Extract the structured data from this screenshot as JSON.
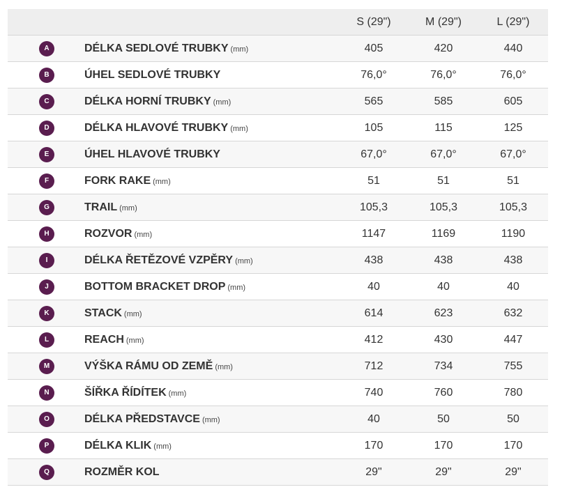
{
  "colors": {
    "badge": "#5a1d4f",
    "header_bg": "#eeeeee",
    "row_alt_bg": "#f7f7f7",
    "divider": "#d6d6d6",
    "text": "#333333"
  },
  "table": {
    "sizes": [
      "S (29\")",
      "M (29\")",
      "L (29\")"
    ],
    "rows": [
      {
        "letter": "A",
        "label": "DÉLKA SEDLOVÉ TRUBKY",
        "unit": "(mm)",
        "values": [
          "405",
          "420",
          "440"
        ]
      },
      {
        "letter": "B",
        "label": "ÚHEL SEDLOVÉ TRUBKY",
        "unit": "",
        "values": [
          "76,0°",
          "76,0°",
          "76,0°"
        ]
      },
      {
        "letter": "C",
        "label": "DÉLKA HORNÍ TRUBKY",
        "unit": "(mm)",
        "values": [
          "565",
          "585",
          "605"
        ]
      },
      {
        "letter": "D",
        "label": "DÉLKA HLAVOVÉ TRUBKY",
        "unit": "(mm)",
        "values": [
          "105",
          "115",
          "125"
        ]
      },
      {
        "letter": "E",
        "label": "ÚHEL HLAVOVÉ TRUBKY",
        "unit": "",
        "values": [
          "67,0°",
          "67,0°",
          "67,0°"
        ]
      },
      {
        "letter": "F",
        "label": "FORK RAKE",
        "unit": "(mm)",
        "values": [
          "51",
          "51",
          "51"
        ]
      },
      {
        "letter": "G",
        "label": "TRAIL",
        "unit": "(mm)",
        "values": [
          "105,3",
          "105,3",
          "105,3"
        ]
      },
      {
        "letter": "H",
        "label": "ROZVOR",
        "unit": "(mm)",
        "values": [
          "1147",
          "1169",
          "1190"
        ]
      },
      {
        "letter": "I",
        "label": "DÉLKA ŘETĚZOVÉ VZPĚRY",
        "unit": "(mm)",
        "values": [
          "438",
          "438",
          "438"
        ]
      },
      {
        "letter": "J",
        "label": "BOTTOM BRACKET DROP",
        "unit": "(mm)",
        "values": [
          "40",
          "40",
          "40"
        ]
      },
      {
        "letter": "K",
        "label": "STACK",
        "unit": "(mm)",
        "values": [
          "614",
          "623",
          "632"
        ]
      },
      {
        "letter": "L",
        "label": "REACH",
        "unit": "(mm)",
        "values": [
          "412",
          "430",
          "447"
        ]
      },
      {
        "letter": "M",
        "label": "VÝŠKA RÁMU OD ZEMĚ",
        "unit": "(mm)",
        "values": [
          "712",
          "734",
          "755"
        ]
      },
      {
        "letter": "N",
        "label": "ŠÍŘKA ŘÍDÍTEK",
        "unit": "(mm)",
        "values": [
          "740",
          "760",
          "780"
        ]
      },
      {
        "letter": "O",
        "label": "DÉLKA PŘEDSTAVCE",
        "unit": "(mm)",
        "values": [
          "40",
          "50",
          "50"
        ]
      },
      {
        "letter": "P",
        "label": "DÉLKA KLIK",
        "unit": "(mm)",
        "values": [
          "170",
          "170",
          "170"
        ]
      },
      {
        "letter": "Q",
        "label": "ROZMĚR KOL",
        "unit": "",
        "values": [
          "29\"",
          "29\"",
          "29\""
        ]
      }
    ]
  }
}
